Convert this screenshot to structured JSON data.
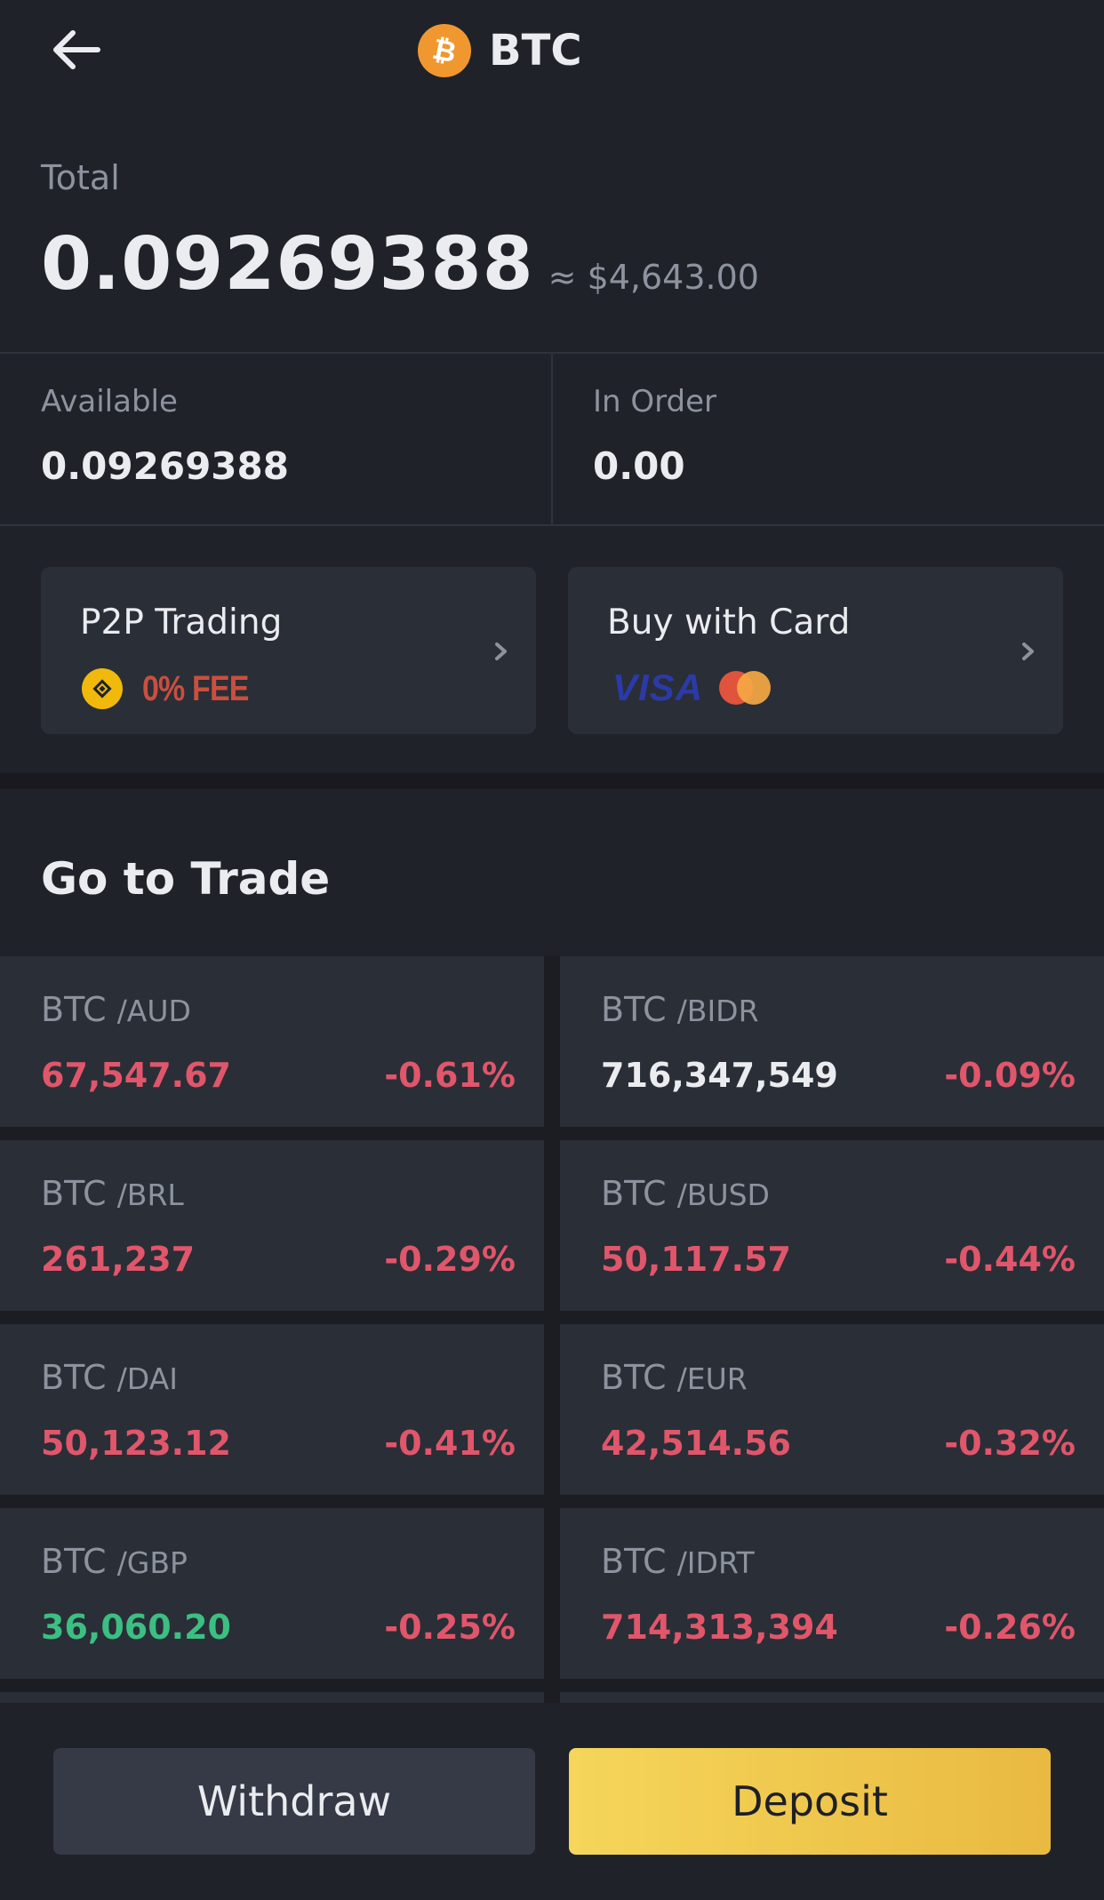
{
  "header": {
    "title": "BTC",
    "coin_icon": "bitcoin-icon",
    "back_icon": "arrow-left-icon"
  },
  "total": {
    "label": "Total",
    "value": "0.09269388",
    "usd": "≈ $4,643.00"
  },
  "balances": {
    "available": {
      "label": "Available",
      "value": "0.09269388"
    },
    "in_order": {
      "label": "In Order",
      "value": "0.00"
    }
  },
  "promos": {
    "p2p": {
      "title": "P2P Trading",
      "fee": "0% FEE"
    },
    "card": {
      "title": "Buy with Card",
      "visa": "VISA"
    }
  },
  "trade": {
    "title": "Go to Trade",
    "pairs": [
      {
        "base": "BTC",
        "quote": "/AUD",
        "price": "67,547.67",
        "change": "-0.61%",
        "price_color": "red"
      },
      {
        "base": "BTC",
        "quote": "/BIDR",
        "price": "716,347,549",
        "change": "-0.09%",
        "price_color": "white"
      },
      {
        "base": "BTC",
        "quote": "/BRL",
        "price": "261,237",
        "change": "-0.29%",
        "price_color": "red"
      },
      {
        "base": "BTC",
        "quote": "/BUSD",
        "price": "50,117.57",
        "change": "-0.44%",
        "price_color": "red"
      },
      {
        "base": "BTC",
        "quote": "/DAI",
        "price": "50,123.12",
        "change": "-0.41%",
        "price_color": "red"
      },
      {
        "base": "BTC",
        "quote": "/EUR",
        "price": "42,514.56",
        "change": "-0.32%",
        "price_color": "red"
      },
      {
        "base": "BTC",
        "quote": "/GBP",
        "price": "36,060.20",
        "change": "-0.25%",
        "price_color": "green"
      },
      {
        "base": "BTC",
        "quote": "/IDRT",
        "price": "714,313,394",
        "change": "-0.26%",
        "price_color": "red"
      }
    ]
  },
  "actions": {
    "withdraw": "Withdraw",
    "deposit": "Deposit"
  },
  "colors": {
    "accent": "#f0b90b",
    "up": "#3cbf82",
    "down": "#e0566a"
  }
}
